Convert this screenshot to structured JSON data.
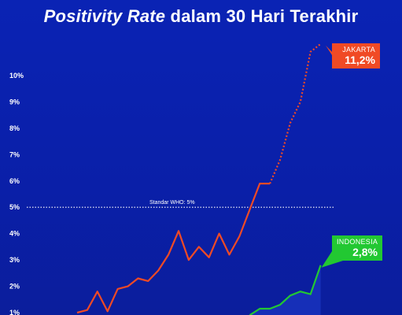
{
  "title": {
    "italic": "Positivity Rate",
    "rest": " dalam 30 Hari Terakhir"
  },
  "chart_data": {
    "type": "line",
    "title": "Positivity Rate dalam 30 Hari Terakhir",
    "xlabel": "",
    "ylabel": "",
    "y_ticks": [
      "1%",
      "2%",
      "3%",
      "4%",
      "5%",
      "6%",
      "7%",
      "8%",
      "9%",
      "10%"
    ],
    "ylim": [
      1,
      11.5
    ],
    "reference_line": {
      "value": 5,
      "label": "Standar WHO: 5%"
    },
    "grid": false,
    "series": [
      {
        "name": "JAKARTA",
        "color": "#f04a25",
        "last_label": "11,2%",
        "dashed_from_day": 24,
        "points": [
          [
            4,
            1.0
          ],
          [
            5,
            1.1
          ],
          [
            6,
            1.8
          ],
          [
            7,
            1.05
          ],
          [
            8,
            1.9
          ],
          [
            9,
            2.0
          ],
          [
            10,
            2.3
          ],
          [
            11,
            2.2
          ],
          [
            12,
            2.6
          ],
          [
            13,
            3.2
          ],
          [
            14,
            4.1
          ],
          [
            15,
            3.0
          ],
          [
            16,
            3.5
          ],
          [
            17,
            3.1
          ],
          [
            18,
            4.0
          ],
          [
            19,
            3.2
          ],
          [
            20,
            3.9
          ],
          [
            21,
            4.9
          ],
          [
            22,
            5.9
          ],
          [
            23,
            5.9
          ],
          [
            24,
            6.8
          ],
          [
            25,
            8.2
          ],
          [
            26,
            9.0
          ],
          [
            27,
            10.9
          ],
          [
            28,
            11.2
          ]
        ]
      },
      {
        "name": "INDONESIA",
        "color": "#22c832",
        "last_label": "2,8%",
        "points": [
          [
            21,
            0.9
          ],
          [
            22,
            1.15
          ],
          [
            23,
            1.15
          ],
          [
            24,
            1.3
          ],
          [
            25,
            1.65
          ],
          [
            26,
            1.8
          ],
          [
            27,
            1.7
          ],
          [
            28,
            2.8
          ]
        ]
      }
    ]
  }
}
